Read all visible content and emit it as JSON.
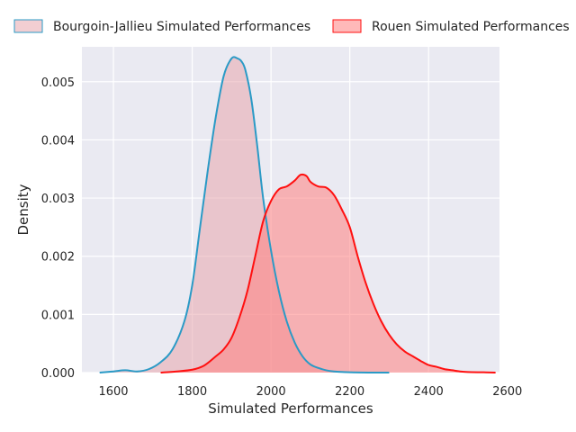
{
  "chart_data": {
    "type": "area",
    "xlabel": "Simulated Performances",
    "ylabel": "Density",
    "xlim": [
      1520,
      2580
    ],
    "ylim": [
      0,
      0.0056
    ],
    "xticks": [
      1600,
      1800,
      2000,
      2200,
      2400,
      2600
    ],
    "xtick_labels": [
      "1600",
      "1800",
      "2000",
      "2200",
      "2400",
      "2600"
    ],
    "yticks": [
      0,
      0.001,
      0.002,
      0.003,
      0.004,
      0.005
    ],
    "ytick_labels": [
      "0.000",
      "0.001",
      "0.002",
      "0.003",
      "0.004",
      "0.005"
    ],
    "grid": true,
    "legend_position": "top",
    "series": [
      {
        "name": "Bourgoin-Jallieu Simulated Performances",
        "line_color": "#2a9ac6",
        "fill_color": "#e8a5ad",
        "x": [
          1565,
          1600,
          1630,
          1660,
          1690,
          1720,
          1750,
          1780,
          1800,
          1820,
          1840,
          1860,
          1880,
          1900,
          1915,
          1925,
          1935,
          1950,
          1965,
          1980,
          2000,
          2020,
          2040,
          2060,
          2080,
          2100,
          2120,
          2140,
          2160,
          2200,
          2250,
          2300
        ],
        "y": [
          0,
          2e-05,
          4e-05,
          2e-05,
          6e-05,
          0.00018,
          0.0004,
          0.00088,
          0.0015,
          0.0025,
          0.0035,
          0.0044,
          0.0051,
          0.0054,
          0.0054,
          0.00535,
          0.0052,
          0.0047,
          0.0039,
          0.003,
          0.0021,
          0.0014,
          0.00088,
          0.00052,
          0.00028,
          0.00014,
          8e-05,
          4e-05,
          2e-05,
          5e-06,
          0,
          0
        ]
      },
      {
        "name": "Rouen Simulated Performances",
        "line_color": "#ff1010",
        "fill_color": "#ff7f7f",
        "x": [
          1720,
          1760,
          1800,
          1830,
          1860,
          1880,
          1900,
          1920,
          1940,
          1960,
          1980,
          2000,
          2020,
          2040,
          2060,
          2075,
          2090,
          2100,
          2120,
          2140,
          2160,
          2180,
          2200,
          2220,
          2240,
          2260,
          2280,
          2300,
          2320,
          2340,
          2360,
          2380,
          2400,
          2420,
          2440,
          2460,
          2480,
          2500,
          2540,
          2570
        ],
        "y": [
          0,
          2e-05,
          5e-05,
          0.00012,
          0.00028,
          0.0004,
          0.0006,
          0.00095,
          0.0014,
          0.002,
          0.0026,
          0.00295,
          0.00315,
          0.0032,
          0.0033,
          0.0034,
          0.00338,
          0.00328,
          0.0032,
          0.00318,
          0.00305,
          0.0028,
          0.0025,
          0.002,
          0.00155,
          0.00118,
          0.00088,
          0.00065,
          0.00048,
          0.00036,
          0.00028,
          0.0002,
          0.00013,
          0.0001,
          6e-05,
          4e-05,
          2e-05,
          1e-05,
          5e-06,
          0
        ]
      }
    ]
  }
}
